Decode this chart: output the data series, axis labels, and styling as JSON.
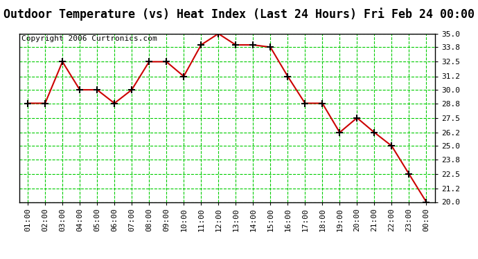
{
  "title": "Outdoor Temperature (vs) Heat Index (Last 24 Hours) Fri Feb 24 00:00",
  "copyright": "Copyright 2006 Curtronics.com",
  "x_labels": [
    "01:00",
    "02:00",
    "03:00",
    "04:00",
    "05:00",
    "06:00",
    "07:00",
    "08:00",
    "09:00",
    "10:00",
    "11:00",
    "12:00",
    "13:00",
    "14:00",
    "15:00",
    "16:00",
    "17:00",
    "18:00",
    "19:00",
    "20:00",
    "21:00",
    "22:00",
    "23:00",
    "00:00"
  ],
  "y_values": [
    28.8,
    28.8,
    32.5,
    30.0,
    30.0,
    28.8,
    30.0,
    32.5,
    32.5,
    31.2,
    34.0,
    35.0,
    34.0,
    34.0,
    33.8,
    31.2,
    28.8,
    28.8,
    26.2,
    27.5,
    26.2,
    25.0,
    22.5,
    20.0
  ],
  "y_ticks": [
    20.0,
    21.2,
    22.5,
    23.8,
    25.0,
    26.2,
    27.5,
    28.8,
    30.0,
    31.2,
    32.5,
    33.8,
    35.0
  ],
  "y_min": 20.0,
  "y_max": 35.0,
  "line_color": "#cc0000",
  "marker_color": "#000000",
  "bg_color": "#ffffff",
  "grid_color": "#00cc00",
  "title_fontsize": 12,
  "tick_fontsize": 8,
  "copyright_fontsize": 8
}
